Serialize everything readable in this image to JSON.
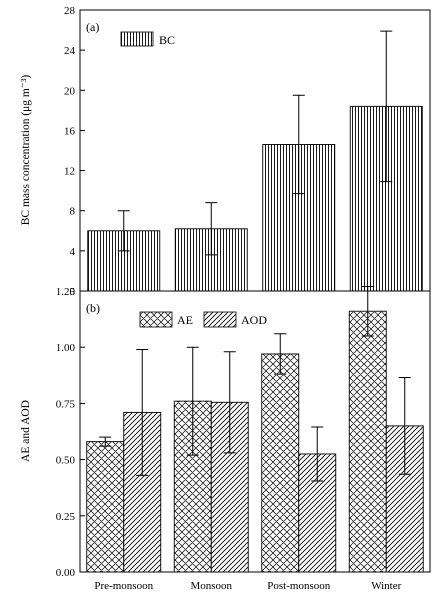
{
  "chart_data": [
    {
      "type": "bar",
      "panel_label": "(a)",
      "categories": [
        "Pre-monsoon",
        "Monsoon",
        "Post-monsoon",
        "Winter"
      ],
      "ylabel": "BC mass concentration (μg m⁻³)",
      "ylim": [
        0,
        28
      ],
      "yticks": [
        0,
        4,
        8,
        12,
        16,
        20,
        24,
        28
      ],
      "legend_position": "top-left",
      "series": [
        {
          "name": "BC",
          "pattern": "vertical-lines",
          "values": [
            6.0,
            6.2,
            14.6,
            18.4
          ],
          "errors": [
            2.0,
            2.6,
            4.9,
            7.5
          ]
        }
      ]
    },
    {
      "type": "bar",
      "panel_label": "(b)",
      "categories": [
        "Pre-monsoon",
        "Monsoon",
        "Post-monsoon",
        "Winter"
      ],
      "ylabel": "AE and AOD",
      "ylim": [
        0,
        1.25
      ],
      "yticks": [
        "0.00",
        "0.25",
        "0.50",
        "0.75",
        "1.00",
        "1.25"
      ],
      "legend_position": "top-center",
      "series": [
        {
          "name": "AE",
          "pattern": "cross-hatch",
          "values": [
            0.58,
            0.76,
            0.97,
            1.16
          ],
          "errors": [
            0.02,
            0.24,
            0.09,
            0.11
          ]
        },
        {
          "name": "AOD",
          "pattern": "diagonal-lines",
          "values": [
            0.71,
            0.755,
            0.525,
            0.65
          ],
          "errors": [
            0.28,
            0.225,
            0.12,
            0.215
          ]
        }
      ]
    }
  ]
}
